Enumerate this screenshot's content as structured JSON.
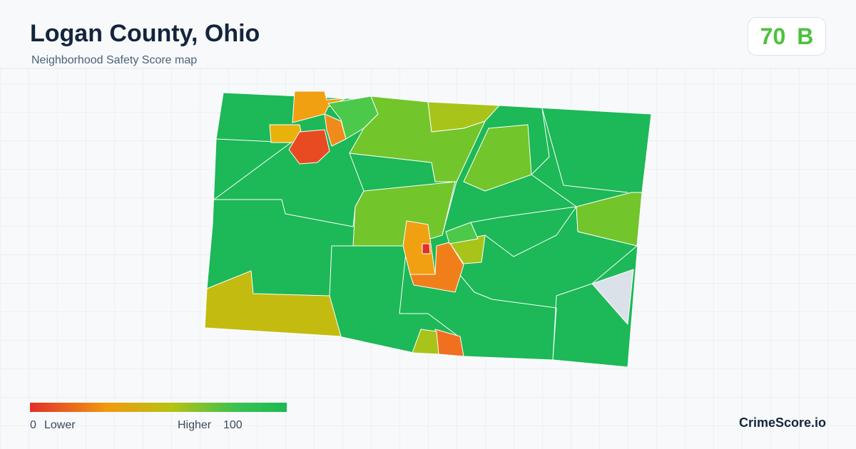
{
  "header": {
    "title": "Logan County, Ohio",
    "subtitle": "Neighborhood Safety Score map"
  },
  "score": {
    "value": "70",
    "grade": "B"
  },
  "legend": {
    "min": "0",
    "min_label": "Lower",
    "max_label": "Higher",
    "max": "100"
  },
  "brand": "CrimeScore.io"
}
